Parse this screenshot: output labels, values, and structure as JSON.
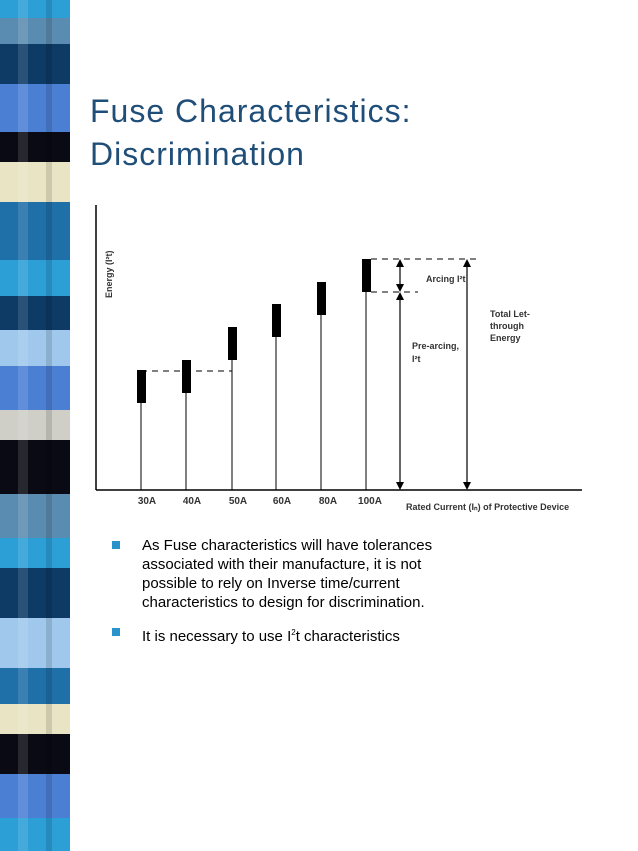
{
  "slide": {
    "title_line1": "Fuse Characteristics:",
    "title_line2": "Discrimination",
    "colors": {
      "title": "#1f4e79",
      "bullet": "#2a93c9"
    }
  },
  "diagram": {
    "y_axis_label": "Energy (I²t)",
    "x_axis_label": "Rated Current (Iₙ) of Protective Device",
    "categories": [
      "30A",
      "40A",
      "50A",
      "60A",
      "80A",
      "100A"
    ],
    "arcing_label": "Arcing I²t",
    "prearcing_label_line1": "Pre-arcing,",
    "prearcing_label_line2": "I²t",
    "total_label_line1": "Total Let-",
    "total_label_line2": "through",
    "total_label_line3": "Energy"
  },
  "bullets": [
    {
      "lines": [
        "As Fuse characteristics will have tolerances",
        "associated with their manufacture, it is not",
        "possible to rely on Inverse time/current",
        "characteristics to design for discrimination."
      ]
    },
    {
      "text_before": "It is necessary to use I",
      "sup": "2",
      "text_after": "t  characteristics"
    }
  ]
}
